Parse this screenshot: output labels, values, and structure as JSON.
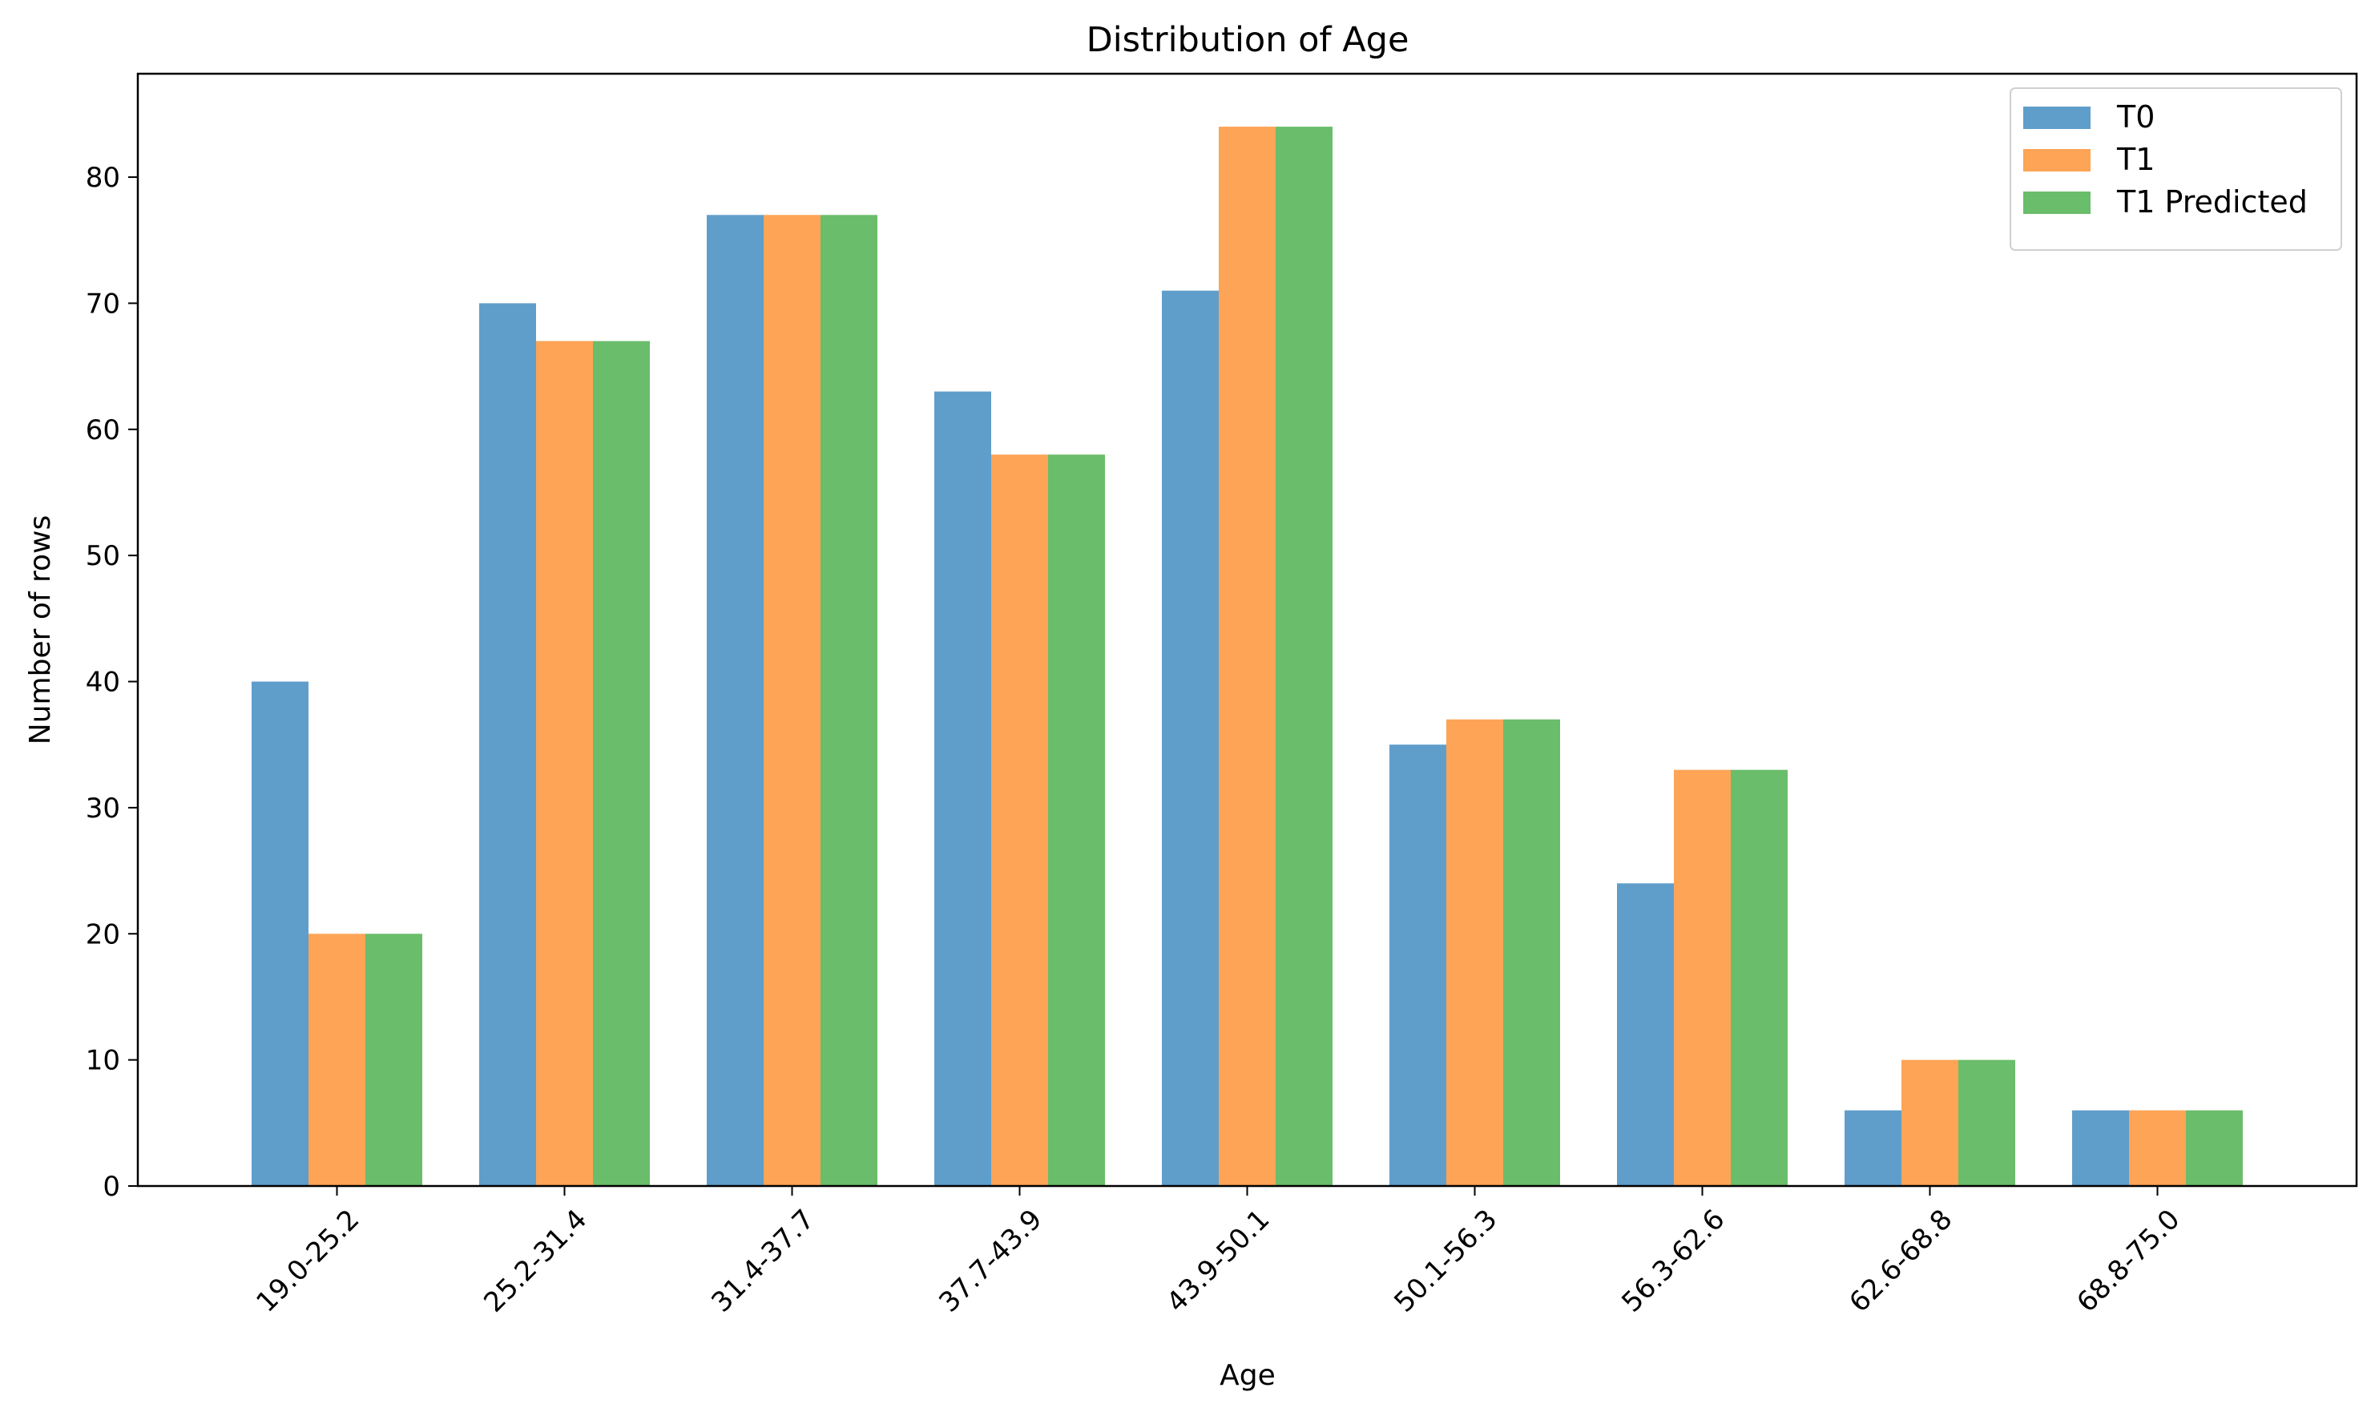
{
  "chart_data": {
    "type": "bar",
    "title": "Distribution of Age",
    "xlabel": "Age",
    "ylabel": "Number of rows",
    "categories": [
      "19.0-25.2",
      "25.2-31.4",
      "31.4-37.7",
      "37.7-43.9",
      "43.9-50.1",
      "50.1-56.3",
      "56.3-62.6",
      "62.6-68.8",
      "68.8-75.0"
    ],
    "series": [
      {
        "name": "T0",
        "color": "#5f9ecb",
        "values": [
          40,
          70,
          77,
          63,
          71,
          35,
          24,
          6,
          6
        ]
      },
      {
        "name": "T1",
        "color": "#fda456",
        "values": [
          20,
          67,
          77,
          58,
          84,
          37,
          33,
          10,
          6
        ]
      },
      {
        "name": "T1 Predicted",
        "color": "#6abd6a",
        "values": [
          20,
          67,
          77,
          58,
          84,
          37,
          33,
          10,
          6
        ]
      }
    ],
    "ylim": [
      0,
      88.2
    ],
    "yticks": [
      0,
      10,
      20,
      30,
      40,
      50,
      60,
      70,
      80
    ],
    "grid": false,
    "legend_position": "top-right",
    "x_tick_rotation": "45 degrees"
  }
}
